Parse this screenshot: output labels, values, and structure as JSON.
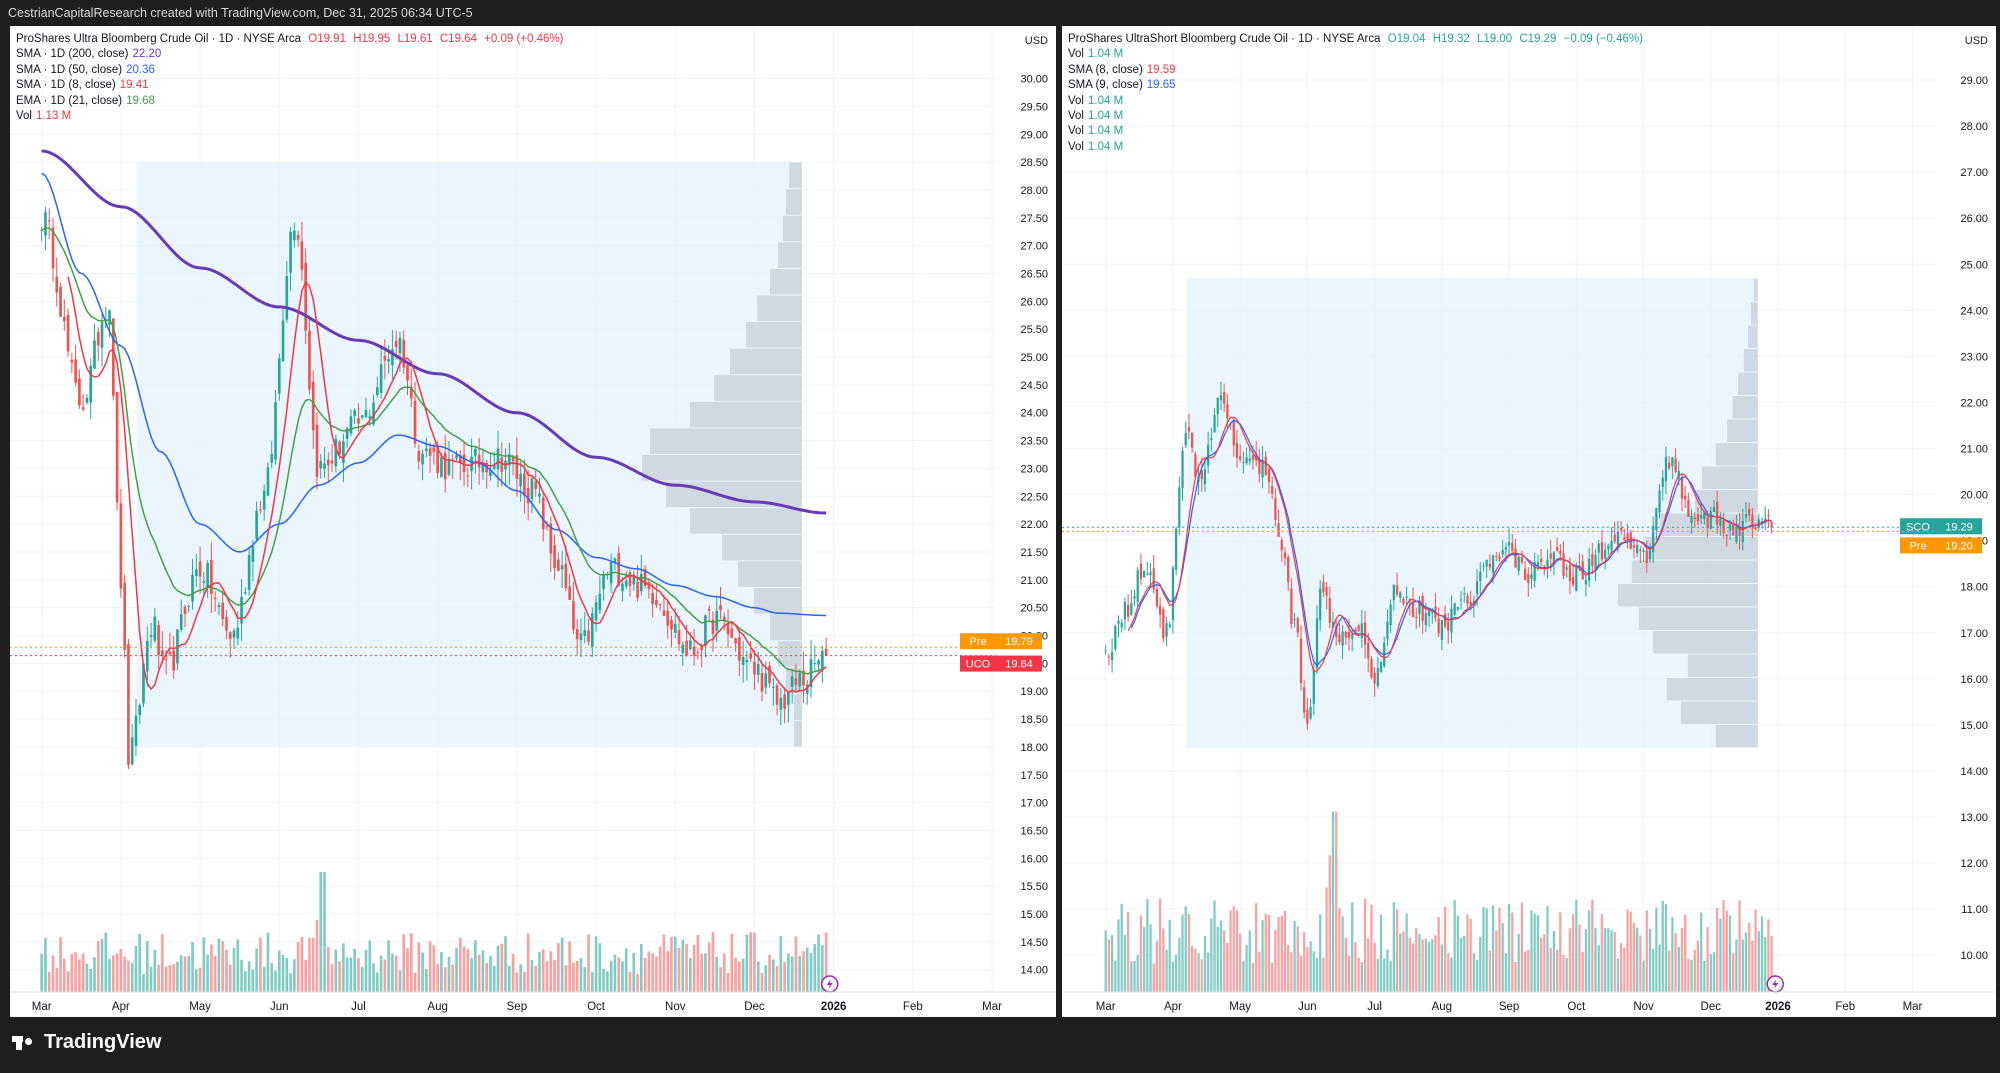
{
  "header": {
    "text": "CestrianCapitalResearch created with TradingView.com, Dec 31, 2025 06:34 UTC-5"
  },
  "footer": {
    "logo_text": "TradingView"
  },
  "colors": {
    "up": "#26a69a",
    "down": "#ef5350",
    "sma200": "#673ab7",
    "sma50": "#2962ff",
    "sma8": "#f23645",
    "ema21": "#43a047",
    "vol_up": "#80cbc4",
    "vol_down": "#f7a1a1",
    "box": "#e3f2fd",
    "profile": "#b2b5be"
  },
  "left_chart": {
    "legend": {
      "title": "ProShares Ultra Bloomberg Crude Oil · 1D · NYSE Arca",
      "ohlc": {
        "o": "O19.91",
        "h": "H19.95",
        "l": "L19.61",
        "c": "C19.64",
        "chg": "+0.09 (+0.46%)"
      },
      "lines": [
        {
          "label": "SMA · 1D (200, close)",
          "value": "22.20",
          "color": "#673ab7"
        },
        {
          "label": "SMA · 1D (50, close)",
          "value": "20.36",
          "color": "#2962ff"
        },
        {
          "label": "SMA · 1D (8, close)",
          "value": "19.41",
          "color": "#f23645"
        },
        {
          "label": "EMA · 1D (21, close)",
          "value": "19.68",
          "color": "#43a047"
        },
        {
          "label": "Vol",
          "value": "1.13 M",
          "color": "#f23645"
        }
      ]
    },
    "currency": "USD",
    "price_labels": [
      {
        "tag": "Pre",
        "value": "19.79",
        "color": "#ff9800"
      },
      {
        "tag": "UCO",
        "value": "19.64",
        "color": "#f23645"
      }
    ]
  },
  "right_chart": {
    "legend": {
      "title": "ProShares UltraShort Bloomberg Crude Oil · 1D · NYSE Arca",
      "ohlc": {
        "o": "O19.04",
        "h": "H19.32",
        "l": "L19.00",
        "c": "C19.29",
        "chg": "−0.09 (−0.46%)"
      },
      "lines": [
        {
          "label": "Vol",
          "value": "1.04 M",
          "color": "#26a69a"
        },
        {
          "label": "SMA (8, close)",
          "value": "19.59",
          "color": "#f23645"
        },
        {
          "label": "SMA (9, close)",
          "value": "19.65",
          "color": "#2962ff"
        },
        {
          "label": "Vol",
          "value": "1.04 M",
          "color": "#26a69a"
        },
        {
          "label": "Vol",
          "value": "1.04 M",
          "color": "#26a69a"
        },
        {
          "label": "Vol",
          "value": "1.04 M",
          "color": "#26a69a"
        },
        {
          "label": "Vol",
          "value": "1.04 M",
          "color": "#26a69a"
        }
      ]
    },
    "currency": "USD",
    "price_labels": [
      {
        "tag": "SCO",
        "value": "19.29",
        "color": "#26a69a"
      },
      {
        "tag": "Pre",
        "value": "19.20",
        "color": "#ff9800"
      }
    ]
  },
  "chart_data": [
    {
      "type": "candlestick",
      "symbol": "UCO",
      "ylim": [
        13.6,
        30.8
      ],
      "y_ticks": [
        "14.00",
        "14.50",
        "15.00",
        "15.50",
        "16.00",
        "16.50",
        "17.00",
        "17.50",
        "18.00",
        "18.50",
        "19.00",
        "19.50",
        "20.00",
        "20.50",
        "21.00",
        "21.50",
        "22.00",
        "22.50",
        "23.00",
        "23.50",
        "24.00",
        "24.50",
        "25.00",
        "25.50",
        "26.00",
        "26.50",
        "27.00",
        "27.50",
        "28.00",
        "28.50",
        "29.00",
        "29.50",
        "30.00"
      ],
      "x_ticks": [
        "Mar",
        "Apr",
        "May",
        "Jun",
        "Jul",
        "Aug",
        "Sep",
        "Oct",
        "Nov",
        "Dec",
        "2026",
        "Feb",
        "Mar"
      ],
      "x_tick_month_index": [
        0,
        1,
        2,
        3,
        4,
        5,
        6,
        7,
        8,
        9,
        10,
        11,
        12
      ],
      "x_range_months": [
        -0.4,
        12.05
      ],
      "last_bar_month": 9.9,
      "close_anchors": [
        [
          0,
          27.5
        ],
        [
          0.5,
          24.2
        ],
        [
          0.85,
          26.0
        ],
        [
          1.0,
          21.0
        ],
        [
          1.1,
          17.8
        ],
        [
          1.4,
          20.2
        ],
        [
          1.55,
          19.3
        ],
        [
          2.0,
          21.2
        ],
        [
          2.4,
          20.0
        ],
        [
          2.8,
          22.5
        ],
        [
          3.2,
          27.5
        ],
        [
          3.5,
          23.0
        ],
        [
          4.0,
          23.8
        ],
        [
          4.5,
          25.3
        ],
        [
          4.8,
          23.3
        ],
        [
          5.2,
          23.0
        ],
        [
          5.8,
          23.2
        ],
        [
          6.2,
          22.6
        ],
        [
          6.5,
          21.3
        ],
        [
          6.8,
          19.8
        ],
        [
          7.2,
          21.2
        ],
        [
          7.7,
          20.8
        ],
        [
          8.2,
          19.7
        ],
        [
          8.5,
          20.3
        ],
        [
          9.0,
          19.4
        ],
        [
          9.3,
          18.8
        ],
        [
          9.6,
          19.2
        ],
        [
          9.9,
          19.64
        ]
      ],
      "sma200_anchors": [
        [
          0,
          28.7
        ],
        [
          1,
          27.7
        ],
        [
          2,
          26.6
        ],
        [
          3,
          25.9
        ],
        [
          4,
          25.3
        ],
        [
          5,
          24.7
        ],
        [
          6,
          24.0
        ],
        [
          7,
          23.2
        ],
        [
          8,
          22.7
        ],
        [
          9,
          22.4
        ],
        [
          9.9,
          22.2
        ]
      ],
      "sma50_anchors": [
        [
          0,
          28.3
        ],
        [
          0.5,
          26.5
        ],
        [
          1.0,
          25.2
        ],
        [
          1.5,
          23.3
        ],
        [
          2.0,
          22.0
        ],
        [
          2.5,
          21.5
        ],
        [
          3.0,
          22.0
        ],
        [
          3.5,
          22.7
        ],
        [
          4.0,
          23.1
        ],
        [
          4.5,
          23.6
        ],
        [
          5.0,
          23.4
        ],
        [
          5.5,
          23.1
        ],
        [
          6.0,
          22.6
        ],
        [
          6.5,
          21.9
        ],
        [
          7.0,
          21.4
        ],
        [
          7.5,
          21.2
        ],
        [
          8.0,
          20.9
        ],
        [
          8.5,
          20.7
        ],
        [
          9.0,
          20.5
        ],
        [
          9.3,
          20.4
        ],
        [
          9.9,
          20.36
        ]
      ],
      "volume_profile_range": [
        18.0,
        28.5
      ],
      "volume_profile_bins": [
        0.05,
        0.05,
        0.1,
        0.15,
        0.2,
        0.3,
        0.4,
        0.5,
        0.7,
        0.85,
        1.0,
        0.95,
        0.7,
        0.55,
        0.45,
        0.35,
        0.28,
        0.2,
        0.15,
        0.12,
        0.1,
        0.08
      ]
    },
    {
      "type": "candlestick",
      "symbol": "SCO",
      "ylim": [
        9.2,
        30.0
      ],
      "y_ticks": [
        "10.00",
        "11.00",
        "12.00",
        "13.00",
        "14.00",
        "15.00",
        "16.00",
        "17.00",
        "18.00",
        "19.00",
        "20.00",
        "21.00",
        "22.00",
        "23.00",
        "24.00",
        "25.00",
        "26.00",
        "27.00",
        "28.00",
        "29.00"
      ],
      "x_ticks": [
        "Mar",
        "Apr",
        "May",
        "Jun",
        "Jul",
        "Aug",
        "Sep",
        "Oct",
        "Nov",
        "Dec",
        "2026",
        "Feb",
        "Mar"
      ],
      "x_tick_month_index": [
        0,
        1,
        2,
        3,
        4,
        5,
        6,
        7,
        8,
        9,
        10,
        11,
        12
      ],
      "x_range_months": [
        -0.65,
        12.35
      ],
      "last_bar_month": 9.9,
      "close_anchors": [
        [
          0,
          16.6
        ],
        [
          0.3,
          17.5
        ],
        [
          0.6,
          18.5
        ],
        [
          0.9,
          17.0
        ],
        [
          1.2,
          21.5
        ],
        [
          1.4,
          20.2
        ],
        [
          1.7,
          22.0
        ],
        [
          2.0,
          20.8
        ],
        [
          2.4,
          20.5
        ],
        [
          2.6,
          19.0
        ],
        [
          2.8,
          17.2
        ],
        [
          3.0,
          15.2
        ],
        [
          3.2,
          17.8
        ],
        [
          3.5,
          17.0
        ],
        [
          3.8,
          17.2
        ],
        [
          4.0,
          16.0
        ],
        [
          4.3,
          18.0
        ],
        [
          4.6,
          17.5
        ],
        [
          5.0,
          17.2
        ],
        [
          5.4,
          17.8
        ],
        [
          5.7,
          18.5
        ],
        [
          6.0,
          18.8
        ],
        [
          6.3,
          18.2
        ],
        [
          6.6,
          18.8
        ],
        [
          7.0,
          18.2
        ],
        [
          7.4,
          18.8
        ],
        [
          7.7,
          19.0
        ],
        [
          8.0,
          18.6
        ],
        [
          8.4,
          20.8
        ],
        [
          8.7,
          19.6
        ],
        [
          9.0,
          19.5
        ],
        [
          9.3,
          19.2
        ],
        [
          9.6,
          19.4
        ],
        [
          9.9,
          19.29
        ]
      ],
      "volume_profile_range": [
        14.5,
        24.7
      ],
      "volume_profile_bins": [
        0.3,
        0.55,
        0.65,
        0.5,
        0.75,
        0.85,
        1.0,
        0.9,
        0.8,
        0.7,
        0.45,
        0.4,
        0.3,
        0.22,
        0.18,
        0.14,
        0.1,
        0.07,
        0.05,
        0.03
      ]
    }
  ]
}
